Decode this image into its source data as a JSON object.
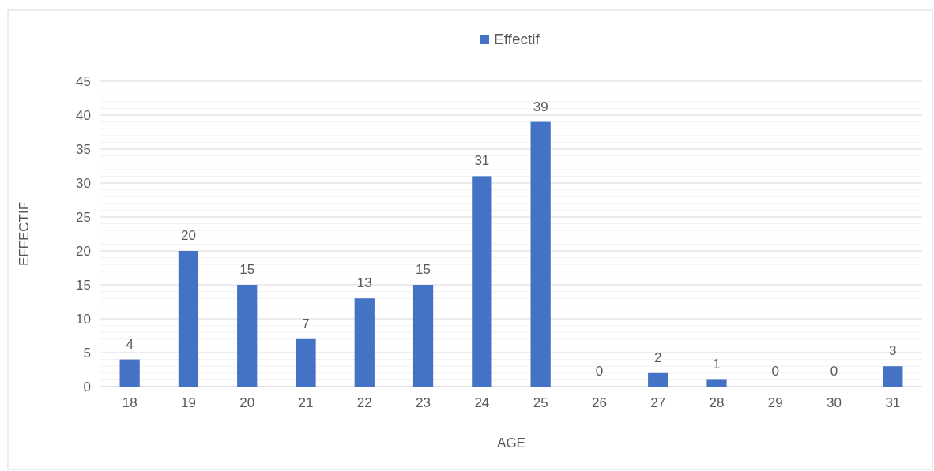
{
  "chart_data": {
    "type": "bar",
    "xlabel": "AGE",
    "ylabel": "EFFECTIF",
    "legend": "top",
    "categories": [
      "18",
      "19",
      "20",
      "21",
      "22",
      "23",
      "24",
      "25",
      "26",
      "27",
      "28",
      "29",
      "30",
      "31"
    ],
    "series": [
      {
        "name": "Effectif",
        "color": "#4472c4",
        "values": [
          4,
          20,
          15,
          7,
          13,
          15,
          31,
          39,
          0,
          2,
          1,
          0,
          0,
          3
        ]
      }
    ],
    "ylim": [
      0,
      45
    ],
    "yticks": [
      0,
      {
        "value": 1,
        "label": null
      },
      {
        "value": 2,
        "label": null
      },
      {
        "value": 3,
        "label": null
      },
      {
        "value": 4,
        "label": null
      },
      5,
      {
        "value": 6,
        "label": null
      },
      {
        "value": 7,
        "label": null
      },
      {
        "value": 8,
        "label": null
      },
      {
        "value": 9,
        "label": null
      },
      10,
      {
        "value": 11,
        "label": null
      },
      {
        "value": 12,
        "label": null
      },
      {
        "value": 13,
        "label": null
      },
      {
        "value": 14,
        "label": null
      },
      15,
      {
        "value": 16,
        "label": null
      },
      {
        "value": 17,
        "label": null
      },
      {
        "value": 18,
        "label": null
      },
      {
        "value": 19,
        "label": null
      },
      20,
      {
        "value": 21,
        "label": null
      },
      {
        "value": 22,
        "label": null
      },
      {
        "value": 23,
        "label": null
      },
      {
        "value": 24,
        "label": null
      },
      25,
      {
        "value": 26,
        "label": null
      },
      {
        "value": 27,
        "label": null
      },
      {
        "value": 28,
        "label": null
      },
      {
        "value": 29,
        "label": null
      },
      30,
      {
        "value": 31,
        "label": null
      },
      {
        "value": 32,
        "label": null
      },
      {
        "value": 33,
        "label": null
      },
      {
        "value": 34,
        "label": null
      },
      35,
      {
        "value": 36,
        "label": null
      },
      {
        "value": 37,
        "label": null
      },
      {
        "value": 38,
        "label": null
      },
      {
        "value": 39,
        "label": null
      },
      40,
      {
        "value": 41,
        "label": null
      },
      {
        "value": 42,
        "label": null
      },
      {
        "value": 43,
        "label": null
      },
      {
        "value": 44,
        "label": null
      },
      45
    ],
    "grid": "y",
    "data_labels": true
  }
}
